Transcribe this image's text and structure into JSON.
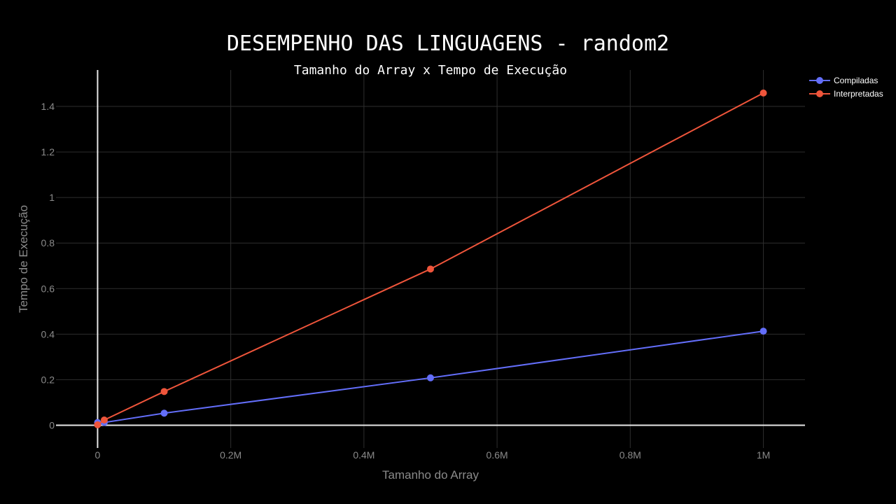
{
  "chart_data": {
    "type": "line",
    "title": "DESEMPENHO DAS LINGUAGENS - random2",
    "subtitle": "Tamanho do Array x Tempo de Execução",
    "xlabel": "Tamanho do Array",
    "ylabel": "Tempo de Execução",
    "xlim": [
      -62500,
      1062500
    ],
    "ylim": [
      -0.1,
      1.56
    ],
    "x_ticks": [
      0,
      200000,
      400000,
      600000,
      800000,
      1000000
    ],
    "x_tick_labels": [
      "0",
      "0.2M",
      "0.4M",
      "0.6M",
      "0.8M",
      "1M"
    ],
    "y_ticks": [
      0,
      0.2,
      0.4,
      0.6,
      0.8,
      1,
      1.2,
      1.4
    ],
    "y_tick_labels": [
      "0",
      "0.2",
      "0.4",
      "0.6",
      "0.8",
      "1",
      "1.2",
      "1.4"
    ],
    "grid": true,
    "legend_position": "top-right",
    "series": [
      {
        "name": "Compiladas",
        "color": "#636efa",
        "x": [
          0,
          10000,
          100000,
          500000,
          1000000
        ],
        "y": [
          0.012,
          0.012,
          0.053,
          0.208,
          0.413
        ]
      },
      {
        "name": "Interpretadas",
        "color": "#ef553b",
        "x": [
          0,
          10000,
          100000,
          500000,
          1000000
        ],
        "y": [
          0.002,
          0.023,
          0.148,
          0.686,
          1.459
        ]
      }
    ]
  }
}
